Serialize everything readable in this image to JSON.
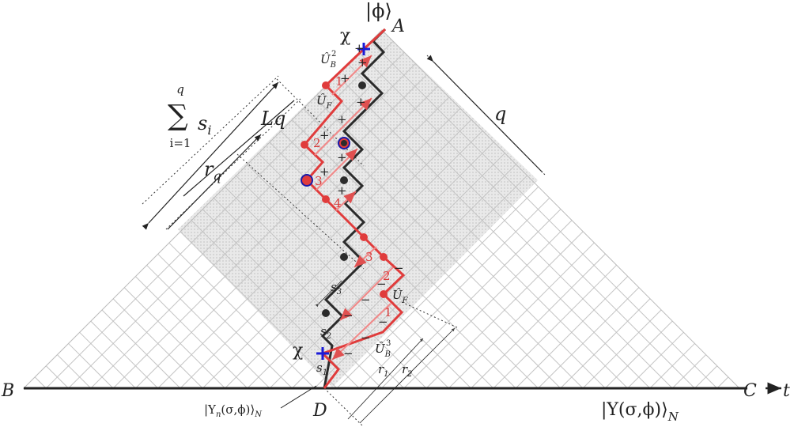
{
  "vertices": {
    "A": "A",
    "B": "B",
    "C": "C",
    "D": "D"
  },
  "axis_label": "t",
  "state_top": "|ϕ⟩",
  "state_bottom": {
    "ket": "|Υ(σ,ϕ)⟩",
    "sub": "N"
  },
  "state_n": {
    "open": "|Υ",
    "sub": "n",
    "close": "(σ,ϕ)⟩",
    "sub2": "N"
  },
  "chi": [
    "χ",
    "χ"
  ],
  "operators": {
    "ub2": {
      "base": "Û",
      "sub": "B",
      "sup": "2"
    },
    "uf_top": {
      "base": "Û",
      "sub": "F"
    },
    "uf_bottom": {
      "base": "Û",
      "sub": "F"
    },
    "ub3": {
      "base": "Û",
      "sub": "B",
      "sup": "3"
    }
  },
  "sum": {
    "symbol": "∑",
    "upper": "q",
    "lower": "i=1",
    "term": "s",
    "sub": "i"
  },
  "lengths": {
    "Lq": "Lq",
    "rq": {
      "base": "r",
      "sub": "q"
    },
    "q": "q",
    "r1": {
      "base": "r",
      "sub": "1"
    },
    "r2": {
      "base": "r",
      "sub": "2"
    }
  },
  "steps": [
    {
      "base": "s",
      "sub": "3"
    },
    {
      "base": "s",
      "sub": "2"
    },
    {
      "base": "s",
      "sub": "1"
    }
  ],
  "upper_numbers": [
    "1",
    "2",
    "3",
    "4"
  ],
  "lower_numbers": [
    "3",
    "2",
    "1"
  ],
  "plus_signs": [
    "+",
    "+",
    "+",
    "+",
    "+",
    "+",
    "+",
    "+",
    "+"
  ],
  "minus_signs": [
    "−",
    "−",
    "−",
    "−",
    "−",
    "−",
    "−"
  ]
}
